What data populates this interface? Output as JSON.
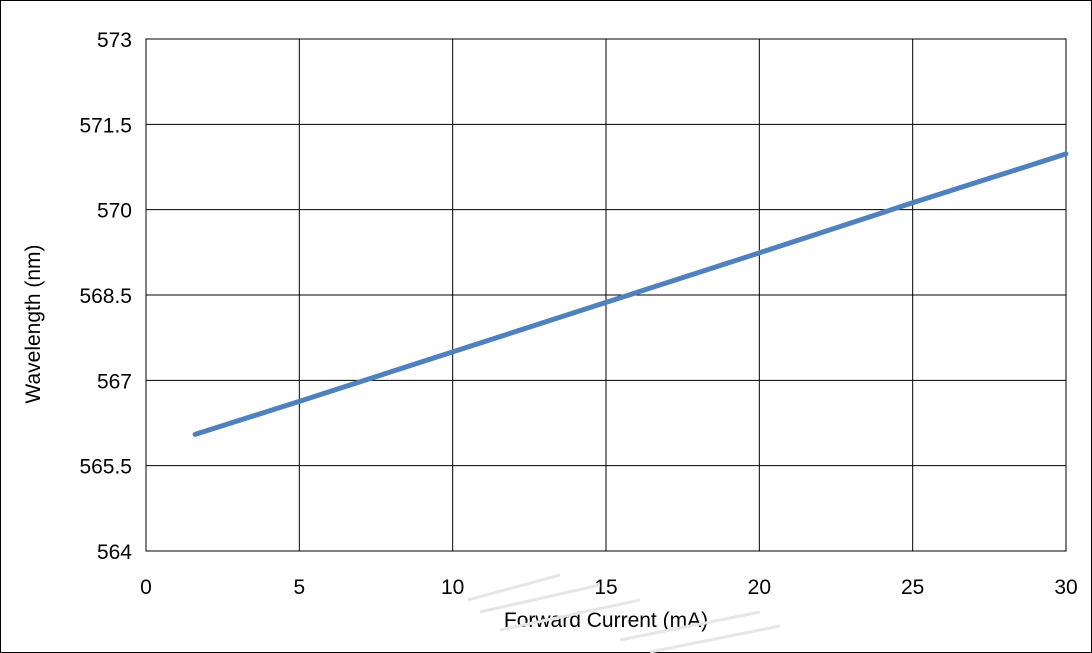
{
  "chart_data": {
    "type": "line",
    "title": "",
    "xlabel": "Forward Current (mA)",
    "ylabel": "Wavelength (nm)",
    "xlim": [
      0,
      30
    ],
    "ylim": [
      564,
      573
    ],
    "x_ticks": [
      "0",
      "5",
      "10",
      "15",
      "20",
      "25",
      "30"
    ],
    "y_ticks": [
      "564",
      "565.5",
      "567",
      "568.5",
      "570",
      "571.5",
      "573"
    ],
    "grid": true,
    "legend": "none",
    "series": [
      {
        "color": "#4f81bd",
        "x": [
          1.6,
          5,
          10,
          15,
          20,
          25,
          30
        ],
        "y": [
          566.05,
          566.63,
          567.5,
          568.37,
          569.24,
          570.12,
          570.98
        ]
      }
    ]
  }
}
